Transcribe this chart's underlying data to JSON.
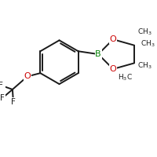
{
  "background_color": "#ffffff",
  "bond_color": "#1a1a1a",
  "boron_color": "#008000",
  "oxygen_color": "#cc0000",
  "carbon_color": "#1a1a1a",
  "line_width": 1.4,
  "dbo": 0.018,
  "figsize": [
    2.0,
    2.0
  ],
  "dpi": 100,
  "xlim": [
    0.0,
    2.0
  ],
  "ylim": [
    0.0,
    2.0
  ]
}
